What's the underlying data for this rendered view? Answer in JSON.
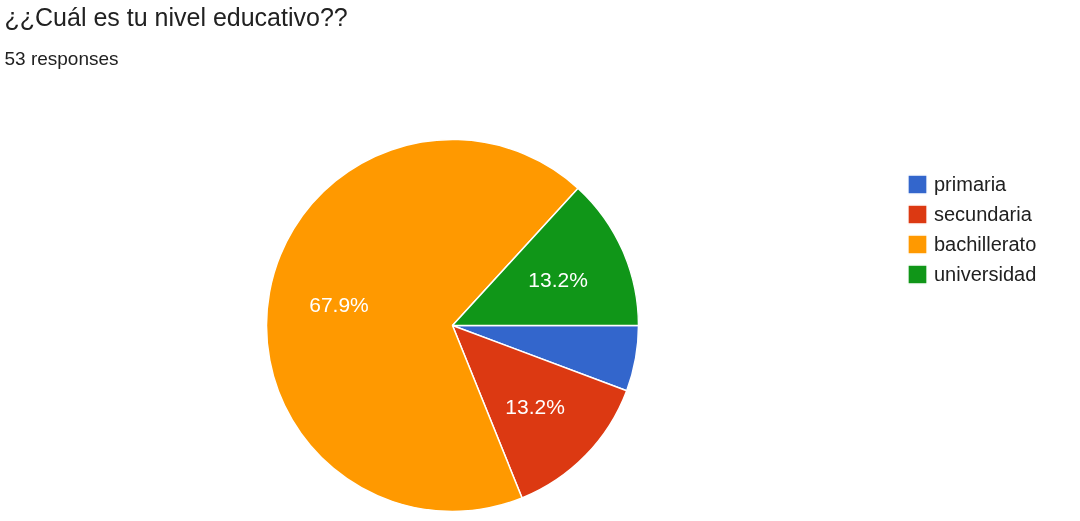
{
  "chart_data": {
    "type": "pie",
    "title": "¿¿Cuál es tu nivel educativo??",
    "subtitle": "53 responses",
    "categories": [
      "primaria",
      "secundaria",
      "bachillerato",
      "universidad"
    ],
    "values": [
      5.7,
      13.2,
      67.9,
      13.2
    ],
    "colors": [
      "#3366cc",
      "#dc3912",
      "#ff9900",
      "#109618"
    ],
    "value_labels": [
      null,
      "13.2%",
      "67.9%",
      "13.2%"
    ],
    "legend": "right"
  }
}
